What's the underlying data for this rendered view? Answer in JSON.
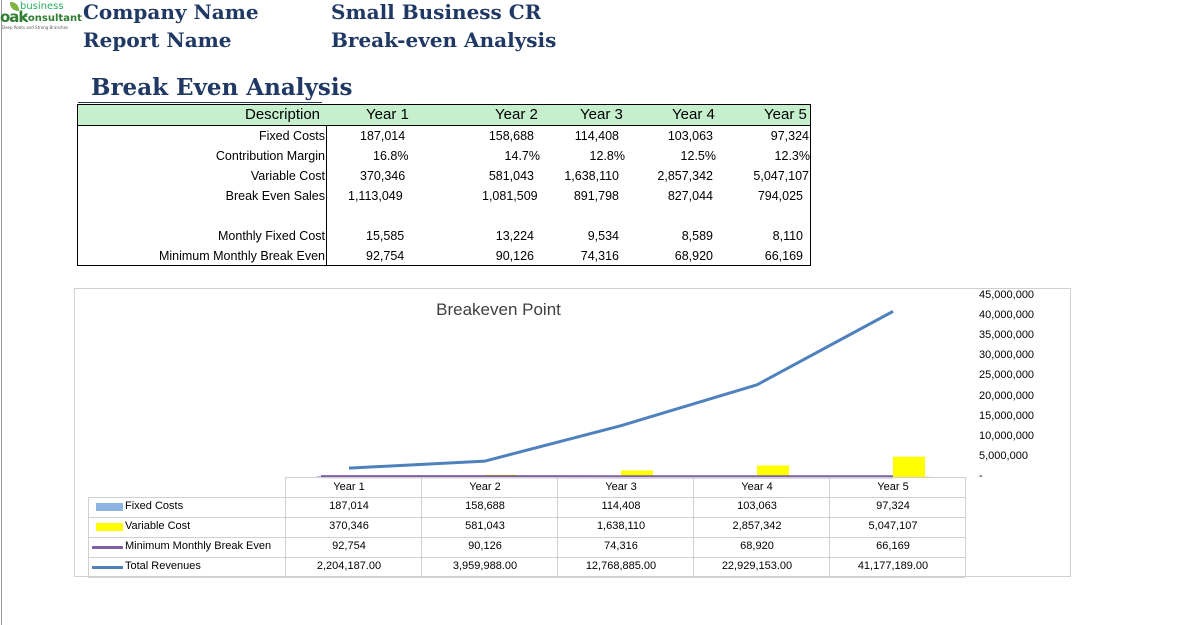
{
  "header": {
    "logo_business": "business",
    "logo_oak": "oak",
    "logo_consultant": "consultant",
    "logo_tagline": "Deep Roots and Strong Branches",
    "company_label": "Company Name",
    "report_label": "Report Name",
    "company_value": "Small Business CRM :",
    "report_value": "Break-even Analysis"
  },
  "section_title": "Break Even Analysis",
  "table": {
    "columns": [
      "Description",
      "Year 1",
      "Year 2",
      "Year 3",
      "Year 4",
      "Year 5"
    ],
    "rows": [
      {
        "label": "Fixed Costs",
        "values": [
          "187,014",
          "158,688",
          "114,408",
          "103,063",
          "97,324"
        ]
      },
      {
        "label": "Contribution Margin",
        "values": [
          "16.8%",
          "14.7%",
          "12.8%",
          "12.5%",
          "12.3%"
        ]
      },
      {
        "label": "Variable Cost",
        "values": [
          "370,346",
          "581,043",
          "1,638,110",
          "2,857,342",
          "5,047,107"
        ]
      },
      {
        "label": "Break Even Sales",
        "values": [
          "1,113,049",
          "1,081,509",
          "891,798",
          "827,044",
          "794,025"
        ]
      },
      {
        "label": "Monthly Fixed Cost",
        "values": [
          "15,585",
          "13,224",
          "9,534",
          "8,589",
          "8,110"
        ]
      },
      {
        "label": "Minimum Monthly Break Even",
        "values": [
          "92,754",
          "90,126",
          "74,316",
          "68,920",
          "66,169"
        ]
      }
    ]
  },
  "chart_data": {
    "type": "bar",
    "title": "Breakeven Point",
    "categories": [
      "Year 1",
      "Year 2",
      "Year 3",
      "Year 4",
      "Year 5"
    ],
    "ylim": [
      0,
      45000000
    ],
    "y_ticks": [
      "45,000,000",
      "40,000,000",
      "35,000,000",
      "30,000,000",
      "25,000,000",
      "20,000,000",
      "15,000,000",
      "10,000,000",
      "5,000,000",
      "-"
    ],
    "legend": "data table below chart",
    "series": [
      {
        "name": "Fixed Costs",
        "kind": "bar",
        "color": "#8db4e2",
        "values": [
          187014,
          158688,
          114408,
          103063,
          97324
        ],
        "labels": [
          "187,014",
          "158,688",
          "114,408",
          "103,063",
          "97,324"
        ]
      },
      {
        "name": "Variable Cost",
        "kind": "bar",
        "color": "#ffff00",
        "values": [
          370346,
          581043,
          1638110,
          2857342,
          5047107
        ],
        "labels": [
          "370,346",
          "581,043",
          "1,638,110",
          "2,857,342",
          "5,047,107"
        ]
      },
      {
        "name": "Minimum Monthly Break Even",
        "kind": "line",
        "color": "#7f5fa8",
        "values": [
          92754,
          90126,
          74316,
          68920,
          66169
        ],
        "labels": [
          "92,754",
          "90,126",
          "74,316",
          "68,920",
          "66,169"
        ]
      },
      {
        "name": "Total Revenues",
        "kind": "line",
        "color": "#4f81bd",
        "values": [
          2204187,
          3959988,
          12768885,
          22929153,
          41177189
        ],
        "labels": [
          "2,204,187.00",
          "3,959,988.00",
          "12,768,885.00",
          "22,929,153.00",
          "41,177,189.00"
        ]
      }
    ]
  }
}
